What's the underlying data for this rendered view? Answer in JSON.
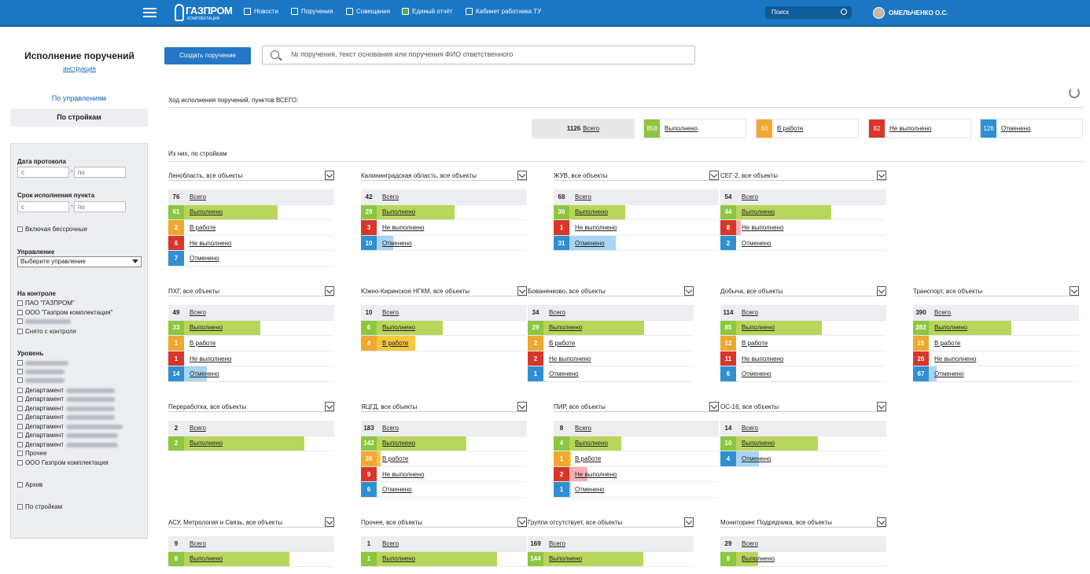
{
  "header": {
    "logo_text": "ГАЗПРОМ",
    "logo_sub": "КОМПЛЕКТАЦИЯ",
    "nav": [
      {
        "label": "Новости",
        "icon": "news-icon"
      },
      {
        "label": "Поручения",
        "icon": "check-icon"
      },
      {
        "label": "Совещания",
        "icon": "meetings-icon"
      },
      {
        "label": "Единый отчёт",
        "icon": "report-icon"
      },
      {
        "label": "Кабинет работника ТУ",
        "icon": "cabinet-icon"
      }
    ],
    "search_placeholder": "Поиск",
    "user": "ОМЕЛЬЧЕНКО О.С."
  },
  "sidebar": {
    "title": "Исполнение поручений",
    "instr": "инструкция",
    "by_upr": "По управлениям",
    "by_str": "По стройкам",
    "date_label": "Дата протокола",
    "deadline_label": "Срок исполнения пункта",
    "from": "с",
    "to": "по",
    "include_unlimited": "Включая бессрочные",
    "mgmt_label": "Управление",
    "mgmt_select": "Выберите управление",
    "control_label": "На контроле",
    "control": [
      "ПАО \"ГАЗПРОМ\"",
      "ООО \"Газпром комплектация\"",
      "",
      "Снято с контроля"
    ],
    "level_label": "Уровень",
    "levels": [
      "",
      "",
      "",
      "Департамент",
      "Департамент",
      "Департамент",
      "Департамент",
      "Департамент",
      "Департамент",
      "Департамент",
      "Прочее",
      "ООО Газпром комплектация"
    ],
    "archive": "Архив",
    "by_str_cb": "По стройкам"
  },
  "main": {
    "create_btn": "Создать поручение",
    "search_placeholder": "№ поручения, текст основания или поручения ФИО ответственного",
    "progress_title": "Ход исполнения поручений, пунктов ВСЕГО:",
    "of_which": "Из них, по стройкам",
    "total": {
      "n": "1126",
      "label": "Всего"
    },
    "summary": [
      {
        "n": "858",
        "label": "Выполнено",
        "color": "#8dc63f"
      },
      {
        "n": "60",
        "label": "В работе",
        "color": "#f0a830"
      },
      {
        "n": "82",
        "label": "Не выполнено",
        "color": "#d9352a"
      },
      {
        "n": "126",
        "label": "Отменено",
        "color": "#2f8fd0"
      }
    ]
  },
  "groups": [
    {
      "title": "Ленобласть, все объекты",
      "total": "76",
      "rows": [
        [
          "61",
          "Выполнено"
        ],
        [
          "2",
          "В работе"
        ],
        [
          "6",
          "Не выполнено"
        ],
        [
          "7",
          "Отменено"
        ]
      ]
    },
    {
      "title": "Калининградская область, все объекты",
      "total": "42",
      "rows": [
        [
          "29",
          "Выполнено"
        ],
        [
          "3",
          "Не выполнено"
        ],
        [
          "10",
          "Отменено"
        ]
      ]
    },
    {
      "title": "ЖУВ, все объекты",
      "total": "68",
      "rows": [
        [
          "36",
          "Выполнено"
        ],
        [
          "1",
          "Не выполнено"
        ],
        [
          "31",
          "Отменено"
        ]
      ]
    },
    {
      "title": "СЕГ-2, все объекты",
      "total": "54",
      "rows": [
        [
          "44",
          "Выполнено"
        ],
        [
          "8",
          "Не выполнено"
        ],
        [
          "2",
          "Отменено"
        ]
      ]
    },
    {
      "title": "ПХГ, все объекты",
      "total": "49",
      "rows": [
        [
          "33",
          "Выполнено"
        ],
        [
          "1",
          "В работе"
        ],
        [
          "1",
          "Не выполнено"
        ],
        [
          "14",
          "Отменено"
        ]
      ]
    },
    {
      "title": "Южно-Киринское НГКМ, все объекты",
      "total": "10",
      "rows": [
        [
          "6",
          "Выполнено"
        ],
        [
          "4",
          "В работе"
        ]
      ]
    },
    {
      "title": "Бованенково, все объекты",
      "total": "34",
      "rows": [
        [
          "29",
          "Выполнено"
        ],
        [
          "2",
          "В работе"
        ],
        [
          "2",
          "Не выполнено"
        ],
        [
          "1",
          "Отменено"
        ]
      ]
    },
    {
      "title": "Добыча, все объекты",
      "total": "114",
      "rows": [
        [
          "85",
          "Выполнено"
        ],
        [
          "12",
          "В работе"
        ],
        [
          "11",
          "Не выполнено"
        ],
        [
          "6",
          "Отменено"
        ]
      ]
    },
    {
      "title": "Транспорт, все объекты",
      "total": "390",
      "rows": [
        [
          "282",
          "Выполнено"
        ],
        [
          "15",
          "В работе"
        ],
        [
          "26",
          "Не выполнено"
        ],
        [
          "67",
          "Отменено"
        ]
      ]
    },
    {
      "title": "Переработка, все объекты",
      "total": "2",
      "rows": [
        [
          "2",
          "Выполнено"
        ]
      ]
    },
    {
      "title": "ЯЦГД, все объекты",
      "total": "183",
      "rows": [
        [
          "142",
          "Выполнено"
        ],
        [
          "26",
          "В работе"
        ],
        [
          "9",
          "Не выполнено"
        ],
        [
          "6",
          "Отменено"
        ]
      ]
    },
    {
      "title": "ПИР, все объекты",
      "total": "8",
      "rows": [
        [
          "4",
          "Выполнено"
        ],
        [
          "1",
          "В работе"
        ],
        [
          "2",
          "Не выполнено"
        ],
        [
          "1",
          "Отменено"
        ]
      ]
    },
    {
      "title": "ОС-16, все объекты",
      "total": "14",
      "rows": [
        [
          "10",
          "Выполнено"
        ],
        [
          "4",
          "Отменено"
        ]
      ]
    },
    {
      "title": "АСУ, Метрология и Связь, все объекты",
      "total": "9",
      "rows": [
        [
          "8",
          "Выполнено"
        ]
      ]
    },
    {
      "title": "Прочее, все объекты",
      "total": "1",
      "rows": [
        [
          "1",
          "Выполнено"
        ]
      ]
    },
    {
      "title": "Группа отсутствует, все объекты",
      "total": "169",
      "rows": [
        [
          "144",
          "Выполнено"
        ]
      ]
    },
    {
      "title": "Мониторинг Подрядчика, все объекты",
      "total": "29",
      "rows": [
        [
          "8",
          "Выполнено"
        ]
      ]
    }
  ]
}
